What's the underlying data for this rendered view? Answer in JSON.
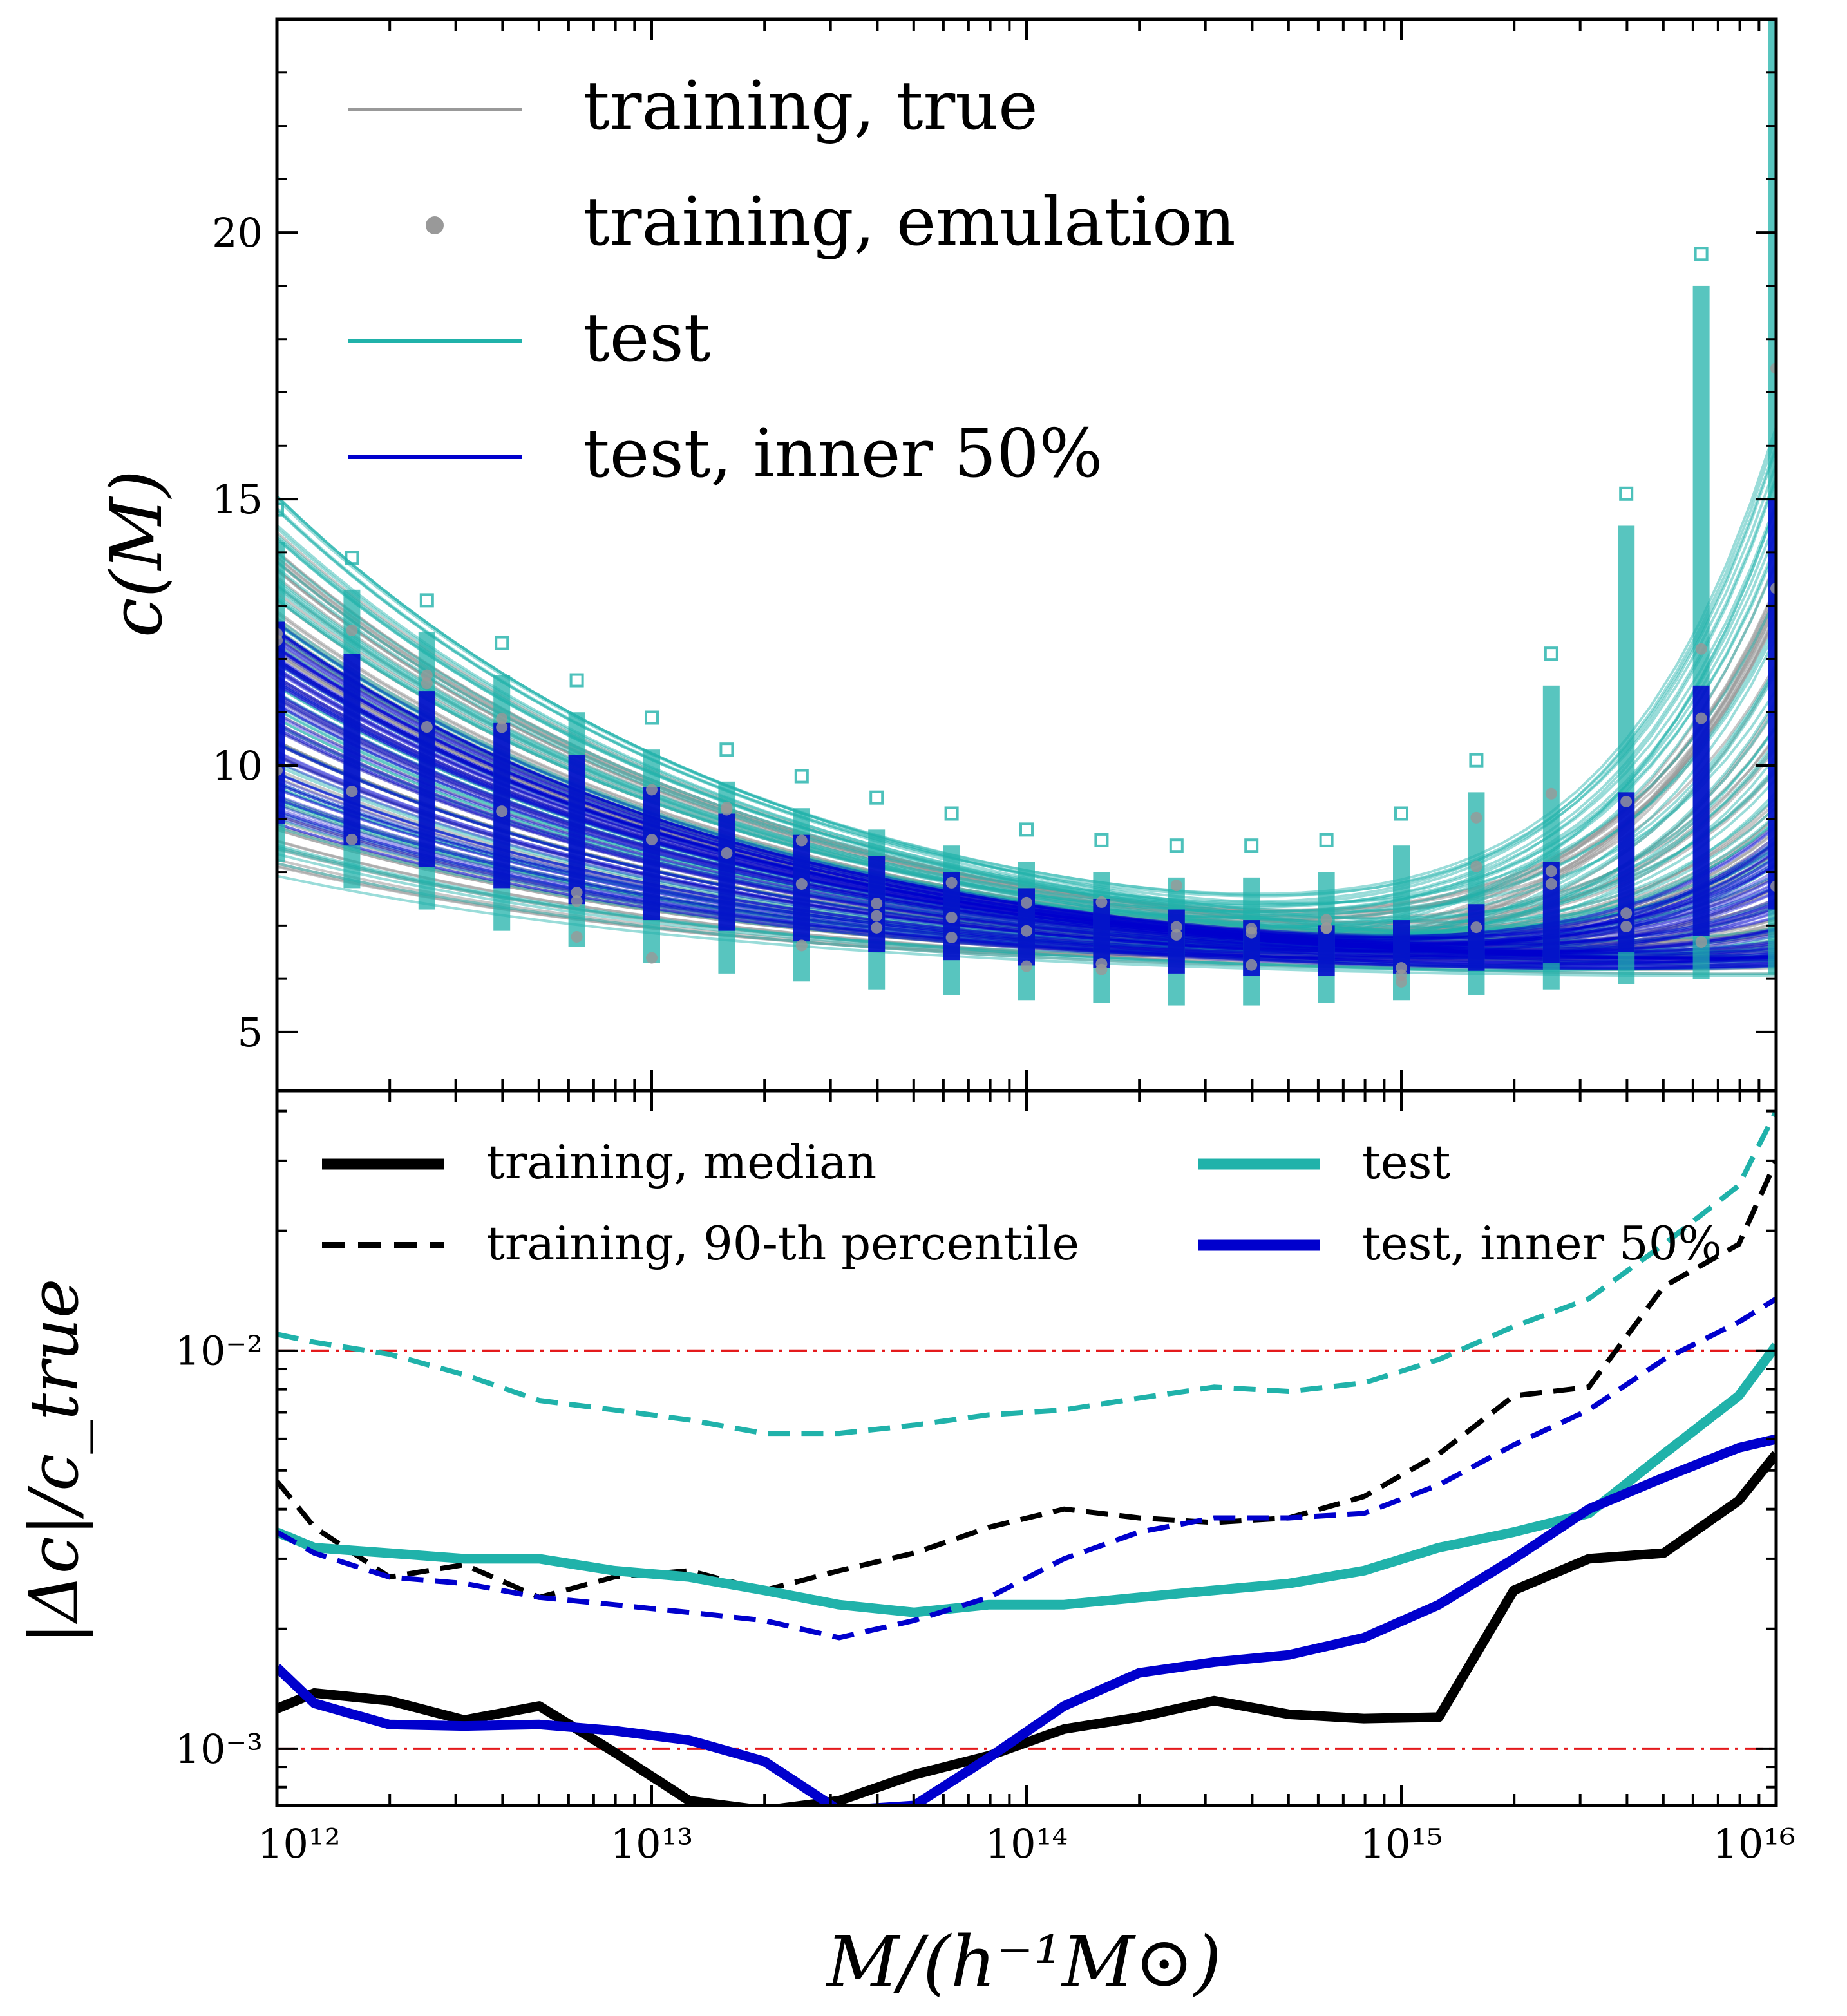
{
  "figure": {
    "xlabel": "M/(h⁻¹M⊙)",
    "x_tick_labels": [
      "10¹²",
      "10¹³",
      "10¹⁴",
      "10¹⁵",
      "10¹⁶"
    ]
  },
  "chart_data": [
    {
      "type": "line",
      "ylabel": "c(M)",
      "xscale": "log",
      "xlim": [
        1000000000000.0,
        1e+16
      ],
      "ylim": [
        3.9,
        24
      ],
      "yticks": [
        5,
        10,
        15,
        20
      ],
      "ytick_labels": [
        "5",
        "10",
        "15",
        "20"
      ],
      "legend_position": "top-left",
      "legend": [
        {
          "label": "training, true",
          "color": "#999999",
          "style": "line"
        },
        {
          "label": "training, emulation",
          "color": "#999999",
          "style": "dot"
        },
        {
          "label": "test",
          "color": "#20b2aa",
          "style": "line"
        },
        {
          "label": "test, inner 50%",
          "color": "#0000cd",
          "style": "line"
        }
      ],
      "x": [
        1000000000000.0,
        1585000000000.0,
        2512000000000.0,
        3981000000000.0,
        6310000000000.0,
        10000000000000.0,
        15850000000000.0,
        25120000000000.0,
        39810000000000.0,
        63100000000000.0,
        100000000000000.0,
        158500000000000.0,
        251200000000000.0,
        398100000000000.0,
        631000000000000.0,
        1000000000000000.0,
        1585000000000000.0,
        2512000000000000.0,
        3981000000000000.0,
        6310000000000000.0,
        1e+16
      ],
      "band_summary": [
        {
          "name": "training, true (envelope low)",
          "values": [
            8.2,
            7.7,
            7.3,
            6.9,
            6.6,
            6.3,
            6.1,
            5.95,
            5.8,
            5.7,
            5.6,
            5.55,
            5.5,
            5.5,
            5.55,
            5.6,
            5.7,
            5.8,
            5.9,
            6.0,
            6.1
          ]
        },
        {
          "name": "training, true (envelope high)",
          "values": [
            14.2,
            13.3,
            12.5,
            11.7,
            11.0,
            10.3,
            9.7,
            9.2,
            8.8,
            8.5,
            8.2,
            8.0,
            7.9,
            7.9,
            8.0,
            8.5,
            9.5,
            11.5,
            14.5,
            19.0,
            24.0
          ]
        },
        {
          "name": "test, inner 50% (low)",
          "values": [
            8.9,
            8.5,
            8.1,
            7.7,
            7.4,
            7.1,
            6.9,
            6.7,
            6.5,
            6.35,
            6.25,
            6.2,
            6.1,
            6.05,
            6.05,
            6.1,
            6.15,
            6.3,
            6.5,
            6.8,
            7.3
          ]
        },
        {
          "name": "test, inner 50% (high)",
          "values": [
            12.7,
            12.1,
            11.4,
            10.8,
            10.2,
            9.6,
            9.1,
            8.7,
            8.3,
            8.0,
            7.7,
            7.5,
            7.3,
            7.1,
            7.0,
            7.1,
            7.4,
            8.2,
            9.5,
            11.5,
            15.0
          ]
        }
      ]
    },
    {
      "type": "line",
      "ylabel": "|Δc|/c_true",
      "xscale": "log",
      "yscale": "log",
      "xlim": [
        1000000000000.0,
        1e+16
      ],
      "ylim": [
        0.00072,
        0.045
      ],
      "yticks": [
        0.001,
        0.01
      ],
      "ytick_labels": [
        "10⁻³",
        "10⁻²"
      ],
      "legend_position": "top",
      "legend": [
        {
          "label": "training, median",
          "color": "#000000",
          "style": "solid"
        },
        {
          "label": "training, 90-th percentile",
          "color": "#000000",
          "style": "dashed"
        },
        {
          "label": "test",
          "color": "#20b2aa",
          "style": "solid"
        },
        {
          "label": "test, inner 50%",
          "color": "#0000cd",
          "style": "solid"
        }
      ],
      "reference_lines": [
        0.01,
        0.001
      ],
      "x": [
        1000000000000.0,
        1259000000000.0,
        1995000000000.0,
        3162000000000.0,
        5012000000000.0,
        7943000000000.0,
        12590000000000.0,
        19950000000000.0,
        31620000000000.0,
        50120000000000.0,
        79430000000000.0,
        125900000000000.0,
        199500000000000.0,
        316200000000000.0,
        501200000000000.0,
        794300000000000.0,
        1259000000000000.0,
        1995000000000000.0,
        3162000000000000.0,
        5012000000000000.0,
        7943000000000000.0,
        1e+16
      ],
      "series": [
        {
          "label": "training, median",
          "color": "#000000",
          "dash": "solid",
          "values": [
            0.00126,
            0.00138,
            0.00132,
            0.00118,
            0.00128,
            0.00098,
            0.00074,
            0.0007,
            0.00074,
            0.00086,
            0.00096,
            0.00112,
            0.0012,
            0.00132,
            0.00122,
            0.00119,
            0.0012,
            0.0025,
            0.003,
            0.0031,
            0.0042,
            0.0055
          ]
        },
        {
          "label": "training, 90-th percentile",
          "color": "#000000",
          "dash": "dashed",
          "values": [
            0.0047,
            0.0036,
            0.0027,
            0.0029,
            0.0024,
            0.0027,
            0.0028,
            0.0025,
            0.0028,
            0.0031,
            0.0036,
            0.004,
            0.0038,
            0.0037,
            0.0038,
            0.0043,
            0.0055,
            0.0077,
            0.0081,
            0.0145,
            0.0185,
            0.03
          ]
        },
        {
          "label": "test",
          "color": "#20b2aa",
          "dash": "solid",
          "values": [
            0.0035,
            0.0032,
            0.0031,
            0.003,
            0.003,
            0.0028,
            0.0027,
            0.0025,
            0.0023,
            0.0022,
            0.0023,
            0.0023,
            0.0024,
            0.0025,
            0.0026,
            0.0028,
            0.0032,
            0.0035,
            0.0039,
            0.0055,
            0.0077,
            0.0103
          ]
        },
        {
          "label": "test, inner 50%",
          "color": "#0000cd",
          "dash": "solid",
          "values": [
            0.0016,
            0.0013,
            0.00115,
            0.00114,
            0.00115,
            0.00111,
            0.00105,
            0.00093,
            0.0007,
            0.00072,
            0.00095,
            0.00128,
            0.00155,
            0.00165,
            0.00172,
            0.0019,
            0.0023,
            0.003,
            0.004,
            0.0048,
            0.0057,
            0.006
          ]
        },
        {
          "label": "test, 90-th percentile",
          "color": "#20b2aa",
          "dash": "dashed",
          "values": [
            0.011,
            0.0105,
            0.0098,
            0.0087,
            0.0075,
            0.0071,
            0.0067,
            0.0062,
            0.0062,
            0.0065,
            0.0069,
            0.0071,
            0.0076,
            0.0081,
            0.0079,
            0.0083,
            0.0095,
            0.0115,
            0.0135,
            0.0185,
            0.026,
            0.04
          ]
        },
        {
          "label": "test, inner 50%, 90-th percentile",
          "color": "#0000cd",
          "dash": "dashed",
          "values": [
            0.0035,
            0.0031,
            0.0027,
            0.0026,
            0.0024,
            0.0023,
            0.0022,
            0.0021,
            0.0019,
            0.0021,
            0.0024,
            0.003,
            0.0035,
            0.0038,
            0.0038,
            0.0039,
            0.0046,
            0.0058,
            0.0071,
            0.0095,
            0.0118,
            0.0135
          ]
        }
      ]
    }
  ]
}
